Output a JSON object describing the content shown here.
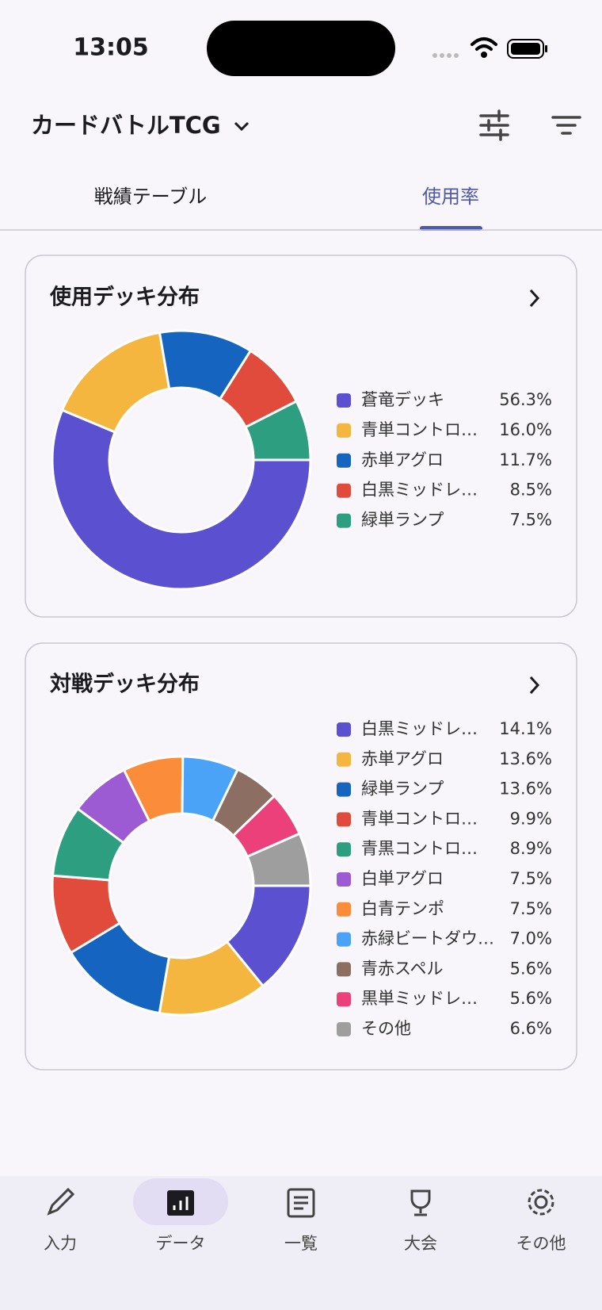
{
  "status_bar": {
    "time": "13:05"
  },
  "header": {
    "title": "カードバトルTCG"
  },
  "tabs": [
    "戦績テーブル",
    "使用率"
  ],
  "chart_data": [
    {
      "type": "pie",
      "donut": true,
      "title": "使用デッキ分布",
      "categories": [
        "蒼竜デッキ",
        "青単コントロ…",
        "赤単アグロ",
        "白黒ミッドレ…",
        "緑単ランプ"
      ],
      "values": [
        56.3,
        16.0,
        11.7,
        8.5,
        7.5
      ],
      "value_labels": [
        "56.3%",
        "16.0%",
        "11.7%",
        "8.5%",
        "7.5%"
      ],
      "colors": [
        "#5b50d0",
        "#f4b63f",
        "#1565c0",
        "#e04b3c",
        "#2e9e80"
      ]
    },
    {
      "type": "pie",
      "donut": true,
      "title": "対戦デッキ分布",
      "categories": [
        "白黒ミッドレ…",
        "赤単アグロ",
        "緑単ランプ",
        "青単コントロ…",
        "青黒コントロ…",
        "白単アグロ",
        "白青テンポ",
        "赤緑ビートダウ…",
        "青赤スペル",
        "黒単ミッドレ…",
        "その他"
      ],
      "values": [
        14.1,
        13.6,
        13.6,
        9.9,
        8.9,
        7.5,
        7.5,
        7.0,
        5.6,
        5.6,
        6.6
      ],
      "value_labels": [
        "14.1%",
        "13.6%",
        "13.6%",
        "9.9%",
        "8.9%",
        "7.5%",
        "7.5%",
        "7.0%",
        "5.6%",
        "5.6%",
        "6.6%"
      ],
      "colors": [
        "#5b50d0",
        "#f4b63f",
        "#1565c0",
        "#e04b3c",
        "#2e9e80",
        "#9c5bd3",
        "#fb8c3a",
        "#4aa3f7",
        "#8d6e63",
        "#ec407a",
        "#9e9e9e"
      ]
    }
  ],
  "nav": [
    "入力",
    "データ",
    "一覧",
    "大会",
    "その他"
  ]
}
